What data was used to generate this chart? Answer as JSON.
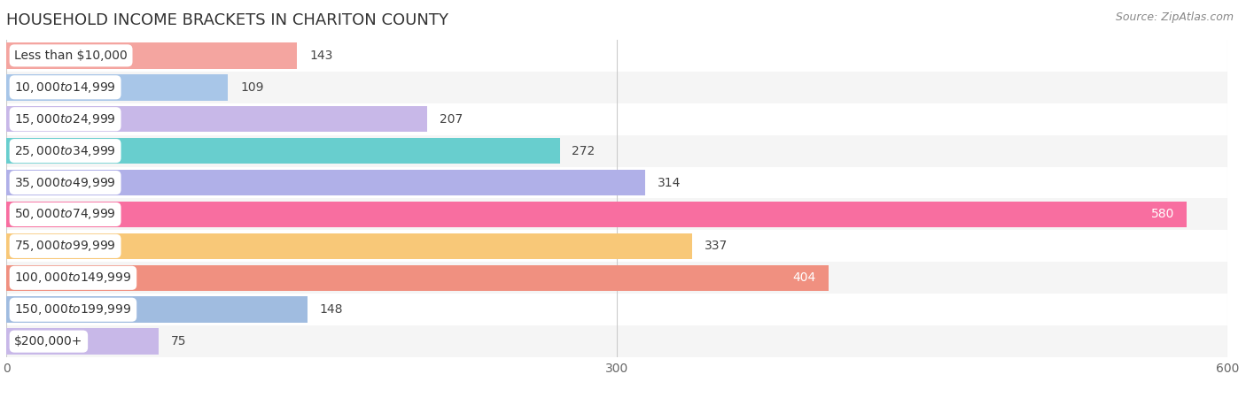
{
  "title": "HOUSEHOLD INCOME BRACKETS IN CHARITON COUNTY",
  "source": "Source: ZipAtlas.com",
  "categories": [
    "Less than $10,000",
    "$10,000 to $14,999",
    "$15,000 to $24,999",
    "$25,000 to $34,999",
    "$35,000 to $49,999",
    "$50,000 to $74,999",
    "$75,000 to $99,999",
    "$100,000 to $149,999",
    "$150,000 to $199,999",
    "$200,000+"
  ],
  "values": [
    143,
    109,
    207,
    272,
    314,
    580,
    337,
    404,
    148,
    75
  ],
  "bar_colors": [
    "#f4a5a0",
    "#a8c6e8",
    "#c8b8e8",
    "#68cece",
    "#b0b0e8",
    "#f86ea0",
    "#f8c878",
    "#f09080",
    "#a0bce0",
    "#c8b8e8"
  ],
  "label_colors": [
    "#555555",
    "#555555",
    "#555555",
    "#555555",
    "#555555",
    "#ffffff",
    "#555555",
    "#ffffff",
    "#555555",
    "#555555"
  ],
  "row_bg_colors": [
    "#ffffff",
    "#f5f5f5",
    "#ffffff",
    "#f5f5f5",
    "#ffffff",
    "#f5f5f5",
    "#ffffff",
    "#f5f5f5",
    "#ffffff",
    "#f5f5f5"
  ],
  "xlim": [
    0,
    600
  ],
  "xticks": [
    0,
    300,
    600
  ],
  "background_color": "#ffffff",
  "title_fontsize": 13,
  "source_fontsize": 9,
  "bar_label_fontsize": 10,
  "tick_label_fontsize": 10,
  "category_fontsize": 10
}
